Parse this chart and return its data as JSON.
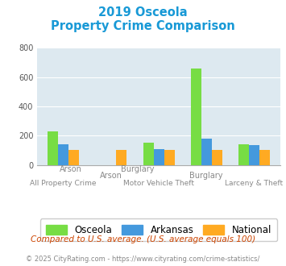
{
  "title_line1": "2019 Osceola",
  "title_line2": "Property Crime Comparison",
  "title_color": "#1899D6",
  "categories": [
    "All Property Crime",
    "Arson",
    "Motor Vehicle Theft",
    "Burglary",
    "Larceny & Theft"
  ],
  "osceola": [
    230,
    0,
    150,
    660,
    140
  ],
  "arkansas": [
    140,
    0,
    110,
    182,
    135
  ],
  "national": [
    100,
    100,
    100,
    100,
    100
  ],
  "osceola_color": "#77DD44",
  "arkansas_color": "#4499DD",
  "national_color": "#FFAA22",
  "ylim": [
    0,
    800
  ],
  "yticks": [
    0,
    200,
    400,
    600,
    800
  ],
  "bg_color": "#DDE9F0",
  "legend_labels": [
    "Osceola",
    "Arkansas",
    "National"
  ],
  "top_labels": [
    [
      1,
      "Arson"
    ],
    [
      3,
      "Burglary"
    ]
  ],
  "bottom_labels": [
    [
      0,
      "All Property Crime"
    ],
    [
      2,
      "Motor Vehicle Theft"
    ],
    [
      4,
      "Larceny & Theft"
    ]
  ],
  "footnote1": "Compared to U.S. average. (U.S. average equals 100)",
  "footnote2": "© 2025 CityRating.com - https://www.cityrating.com/crime-statistics/",
  "footnote1_color": "#CC4400",
  "footnote2_color": "#888888",
  "label_color": "#888888"
}
